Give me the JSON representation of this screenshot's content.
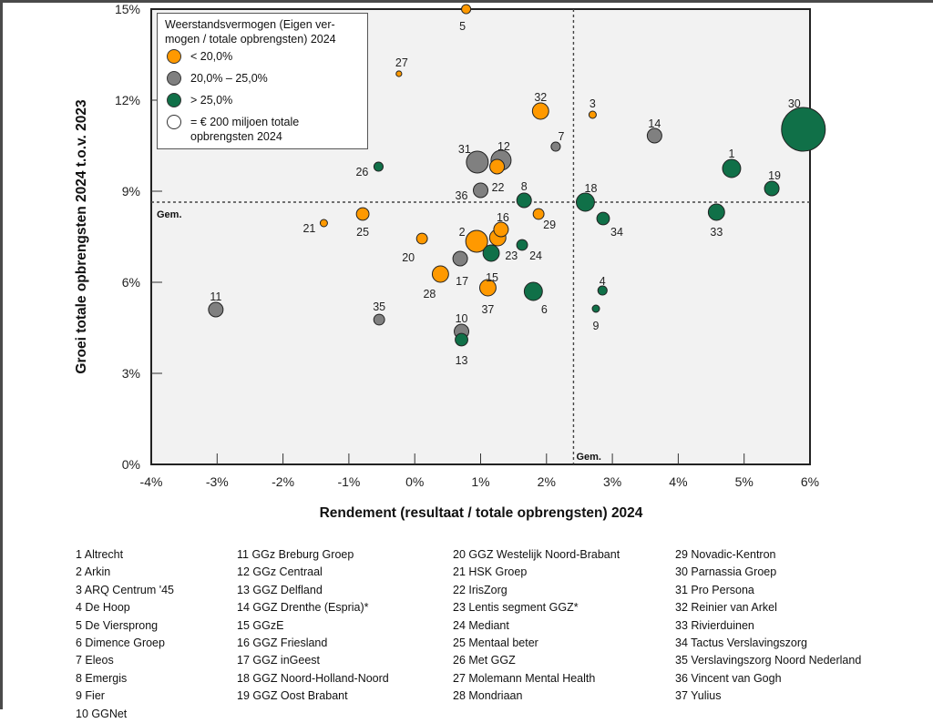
{
  "chart_data": {
    "type": "scatter",
    "subtype": "bubble",
    "xlabel": "Rendement (resultaat / totale opbrengsten) 2024",
    "ylabel": "Groei totale opbrengsten 2024 t.o.v. 2023",
    "xlim": [
      -4,
      6
    ],
    "ylim": [
      0,
      15
    ],
    "x_ticks": [
      "-4%",
      "-3%",
      "-2%",
      "-1%",
      "0%",
      "1%",
      "2%",
      "3%",
      "4%",
      "5%",
      "6%"
    ],
    "y_ticks": [
      "0%",
      "3%",
      "6%",
      "9%",
      "12%",
      "15%"
    ],
    "x_tick_values": [
      -4,
      -3,
      -2,
      -1,
      0,
      1,
      2,
      3,
      4,
      5,
      6
    ],
    "y_tick_values": [
      0,
      3,
      6,
      9,
      12,
      15
    ],
    "grid": false,
    "averages": {
      "x": 2.41,
      "y": 8.64,
      "label": "Gem."
    },
    "legend": {
      "placement": "top-left",
      "title": "Weerstandsvermogen (Eigen ver-mogen / totale opbrengsten) 2024",
      "title_line1": "Weerstandsvermogen (Eigen ver-",
      "title_line2": "mogen / totale opbrengsten) 2024",
      "entries": [
        {
          "category": "low",
          "label": "< 20,0%",
          "color": "#FF9900"
        },
        {
          "category": "mid",
          "label": "20,0% – 25,0%",
          "color": "#808080"
        },
        {
          "category": "high",
          "label": "> 25,0%",
          "color": "#107048"
        }
      ],
      "size_reference": {
        "label_line1": "= € 200 miljoen totale",
        "label_line2": "opbrengsten 2024",
        "value_meur": 200
      }
    },
    "colors": {
      "low": "#FF9900",
      "mid": "#808080",
      "high": "#107048",
      "plot_bg": "#F2F2F2"
    },
    "points": [
      {
        "id": 1,
        "name": "Altrecht",
        "x": 4.81,
        "y": 9.75,
        "cat": "high",
        "size_meur": 310
      },
      {
        "id": 2,
        "name": "Arkin",
        "x": 0.94,
        "y": 7.35,
        "cat": "low",
        "size_meur": 450
      },
      {
        "id": 3,
        "name": "ARQ Centrum '45",
        "x": 2.7,
        "y": 11.52,
        "cat": "low",
        "size_meur": 50
      },
      {
        "id": 4,
        "name": "De Hoop",
        "x": 2.85,
        "y": 5.73,
        "cat": "high",
        "size_meur": 80
      },
      {
        "id": 5,
        "name": "De Viersprong",
        "x": 0.78,
        "y": 15.0,
        "cat": "low",
        "size_meur": 80
      },
      {
        "id": 6,
        "name": "Dimence Groep",
        "x": 1.8,
        "y": 5.7,
        "cat": "high",
        "size_meur": 310
      },
      {
        "id": 7,
        "name": "Eleos",
        "x": 2.14,
        "y": 10.47,
        "cat": "mid",
        "size_meur": 80
      },
      {
        "id": 8,
        "name": "Emergis",
        "x": 1.66,
        "y": 8.7,
        "cat": "high",
        "size_meur": 200
      },
      {
        "id": 9,
        "name": "Fier",
        "x": 2.75,
        "y": 5.13,
        "cat": "high",
        "size_meur": 50
      },
      {
        "id": 10,
        "name": "GGNet",
        "x": 0.71,
        "y": 4.38,
        "cat": "mid",
        "size_meur": 200
      },
      {
        "id": 11,
        "name": "GGz Breburg Groep",
        "x": -3.02,
        "y": 5.1,
        "cat": "mid",
        "size_meur": 200
      },
      {
        "id": 12,
        "name": "GGz Centraal",
        "x": 1.31,
        "y": 10.02,
        "cat": "mid",
        "size_meur": 380
      },
      {
        "id": 13,
        "name": "GGZ Delfland",
        "x": 0.71,
        "y": 4.11,
        "cat": "high",
        "size_meur": 150
      },
      {
        "id": 14,
        "name": "GGZ Drenthe (Espria)*",
        "x": 3.64,
        "y": 10.83,
        "cat": "mid",
        "size_meur": 200
      },
      {
        "id": 15,
        "name": "GGzE",
        "x": 1.16,
        "y": 6.96,
        "cat": "high",
        "size_meur": 250
      },
      {
        "id": 16,
        "name": "GGZ Friesland",
        "x": 1.31,
        "y": 7.74,
        "cat": "low",
        "size_meur": 200
      },
      {
        "id": 17,
        "name": "GGZ inGeest",
        "x": 0.69,
        "y": 6.78,
        "cat": "mid",
        "size_meur": 200
      },
      {
        "id": 18,
        "name": "GGZ Noord-Holland-Noord",
        "x": 2.59,
        "y": 8.64,
        "cat": "high",
        "size_meur": 310
      },
      {
        "id": 19,
        "name": "GGZ Oost Brabant",
        "x": 5.42,
        "y": 9.09,
        "cat": "high",
        "size_meur": 200
      },
      {
        "id": 20,
        "name": "GGZ Westelijk Noord-Brabant",
        "x": 0.11,
        "y": 7.44,
        "cat": "low",
        "size_meur": 110
      },
      {
        "id": 21,
        "name": "HSK Groep",
        "x": -1.38,
        "y": 7.95,
        "cat": "low",
        "size_meur": 50
      },
      {
        "id": 22,
        "name": "IrisZorg",
        "x": 1.25,
        "y": 9.81,
        "cat": "low",
        "size_meur": 200
      },
      {
        "id": 23,
        "name": "Lentis segment GGZ*",
        "x": 1.26,
        "y": 7.47,
        "cat": "low",
        "size_meur": 250
      },
      {
        "id": 24,
        "name": "Mediant",
        "x": 1.63,
        "y": 7.23,
        "cat": "high",
        "size_meur": 110
      },
      {
        "id": 25,
        "name": "Mentaal beter",
        "x": -0.79,
        "y": 8.25,
        "cat": "low",
        "size_meur": 150
      },
      {
        "id": 26,
        "name": "Met GGZ",
        "x": -0.55,
        "y": 9.81,
        "cat": "high",
        "size_meur": 80
      },
      {
        "id": 27,
        "name": "Molemann Mental Health",
        "x": -0.24,
        "y": 12.87,
        "cat": "low",
        "size_meur": 30
      },
      {
        "id": 28,
        "name": "Mondriaan",
        "x": 0.39,
        "y": 6.27,
        "cat": "low",
        "size_meur": 250
      },
      {
        "id": 29,
        "name": "Novadic-Kentron",
        "x": 1.88,
        "y": 8.25,
        "cat": "low",
        "size_meur": 110
      },
      {
        "id": 30,
        "name": "Parnassia Groep",
        "x": 5.9,
        "y": 11.04,
        "cat": "high",
        "size_meur": 1800
      },
      {
        "id": 31,
        "name": "Pro Persona",
        "x": 0.95,
        "y": 9.96,
        "cat": "mid",
        "size_meur": 450
      },
      {
        "id": 32,
        "name": "Reinier van Arkel",
        "x": 1.91,
        "y": 11.64,
        "cat": "low",
        "size_meur": 250
      },
      {
        "id": 33,
        "name": "Rivierduinen",
        "x": 4.58,
        "y": 8.31,
        "cat": "high",
        "size_meur": 250
      },
      {
        "id": 34,
        "name": "Tactus Verslavingszorg",
        "x": 2.86,
        "y": 8.1,
        "cat": "high",
        "size_meur": 150
      },
      {
        "id": 35,
        "name": "Verslavingszorg Noord Nederland",
        "x": -0.54,
        "y": 4.77,
        "cat": "mid",
        "size_meur": 110
      },
      {
        "id": 36,
        "name": "Vincent van Gogh",
        "x": 1.0,
        "y": 9.03,
        "cat": "mid",
        "size_meur": 200
      },
      {
        "id": 37,
        "name": "Yulius",
        "x": 1.11,
        "y": 5.82,
        "cat": "low",
        "size_meur": 250
      }
    ]
  },
  "name_list": {
    "col1": [
      "1 Altrecht",
      "2 Arkin",
      "3 ARQ Centrum '45",
      "4 De Hoop",
      "5 De Viersprong",
      "6 Dimence Groep",
      "7 Eleos",
      "8 Emergis",
      "9 Fier",
      "10 GGNet"
    ],
    "col2": [
      "11 GGz Breburg Groep",
      "12 GGz Centraal",
      "13 GGZ Delfland",
      "14 GGZ Drenthe (Espria)*",
      "15 GGzE",
      "16 GGZ Friesland",
      "17 GGZ inGeest",
      "18 GGZ Noord-Holland-Noord",
      "19 GGZ Oost Brabant"
    ],
    "col3": [
      "20 GGZ Westelijk Noord-Brabant",
      "21 HSK Groep",
      "22 IrisZorg",
      "23 Lentis segment GGZ*",
      "24 Mediant",
      "25 Mentaal beter",
      "26 Met GGZ",
      "27 Molemann Mental Health",
      "28 Mondriaan"
    ],
    "col4": [
      "29 Novadic-Kentron",
      "30 Parnassia Groep",
      "31 Pro Persona",
      "32 Reinier van Arkel",
      "33 Rivierduinen",
      "34 Tactus Verslavingszorg",
      "35 Verslavingszorg Noord Nederland",
      "36 Vincent van Gogh",
      "37 Yulius"
    ]
  }
}
